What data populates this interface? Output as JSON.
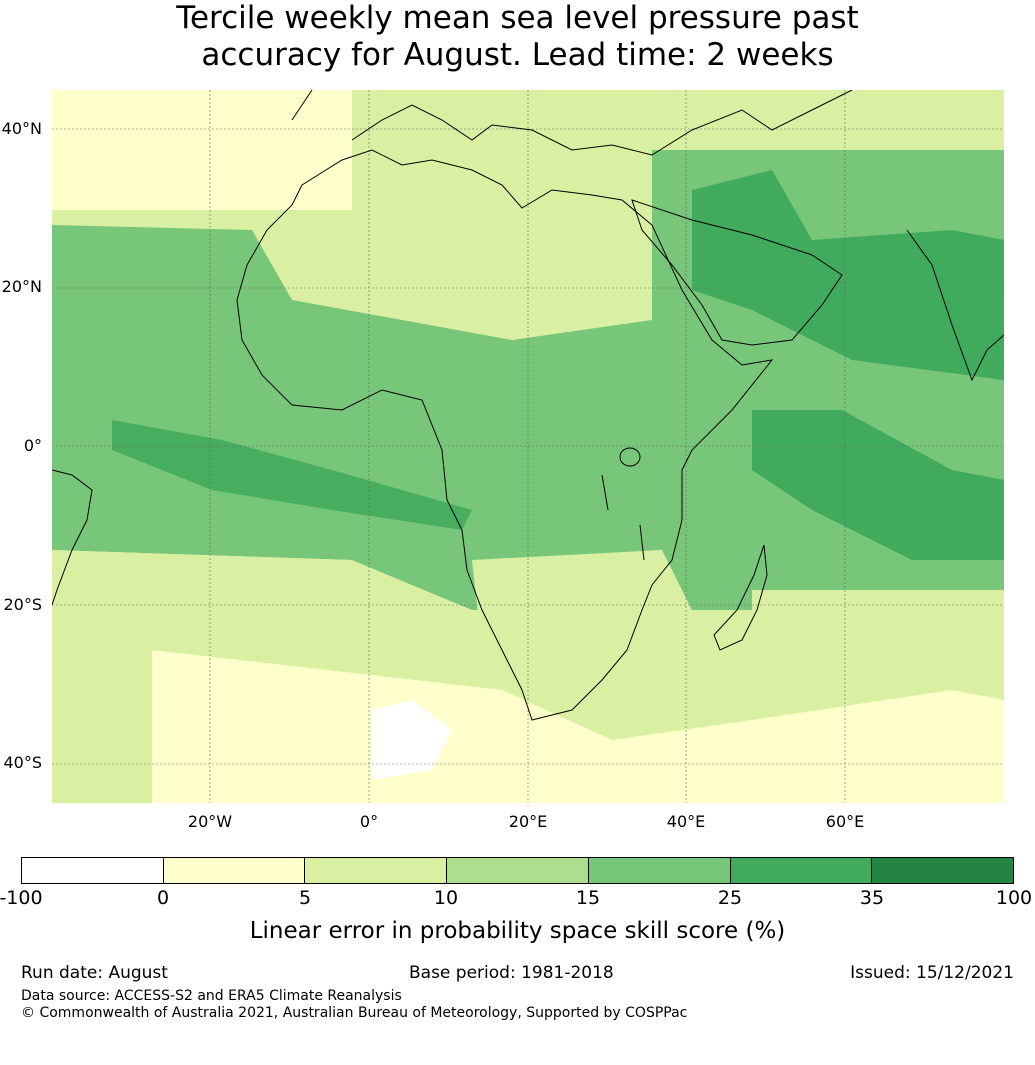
{
  "title_line1": "Tercile weekly mean sea level pressure past",
  "title_line2": "accuracy for August. Lead time: 2 weeks",
  "map": {
    "lat_labels": [
      "40°N",
      "20°N",
      "0°",
      "20°S",
      "40°S"
    ],
    "lon_labels": [
      "20°W",
      "0°",
      "20°E",
      "40°E",
      "60°E"
    ],
    "extent": {
      "lon_min": -40,
      "lon_max": 80,
      "lat_min": -45,
      "lat_max": 45
    },
    "gridlines": true
  },
  "colorbar": {
    "ticks": [
      "-100",
      "0",
      "5",
      "10",
      "15",
      "25",
      "35",
      "100"
    ],
    "colors": [
      "#ffffff",
      "#ffffcc",
      "#d9f0a3",
      "#addd8e",
      "#78c679",
      "#41ab5d",
      "#238443"
    ],
    "label": "Linear error in probability space skill score (%)"
  },
  "footer": {
    "run_date": "Run date: August",
    "base_period": "Base period: 1981-2018",
    "issued": "Issued: 15/12/2021",
    "data_source": "Data source: ACCESS-S2 and ERA5 Climate Reanalysis",
    "copyright": "© Commonwealth of Australia 2021, Australian Bureau of Meteorology, Supported by COSPPac"
  }
}
